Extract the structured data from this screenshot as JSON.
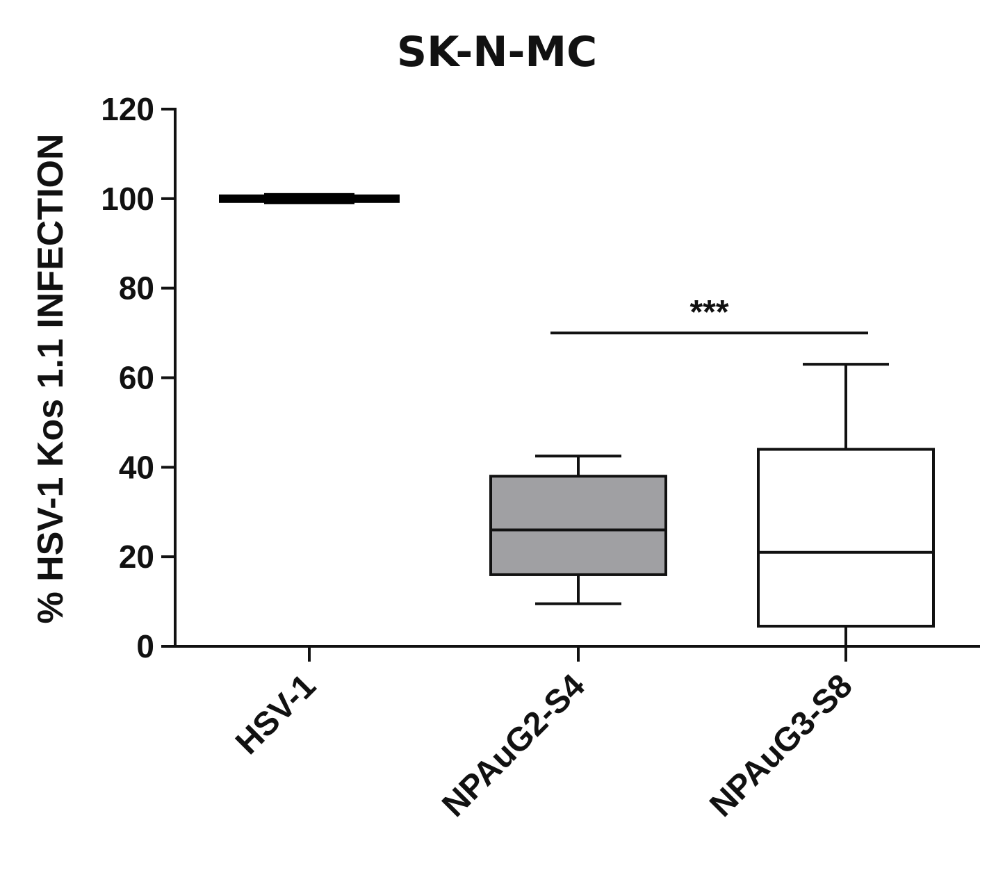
{
  "chart_data": {
    "type": "box",
    "title": "SK-N-MC",
    "xlabel": "",
    "ylabel": "% HSV-1 Kos 1.1 INFECTION",
    "ylim": [
      0,
      120
    ],
    "yticks": [
      "0",
      "20",
      "40",
      "60",
      "80",
      "100",
      "120"
    ],
    "ytick_values": [
      0,
      20,
      40,
      60,
      80,
      100,
      120
    ],
    "grid": false,
    "legend": "none",
    "categories": [
      "HSV-1",
      "NPAuG2-S4",
      "NPAuG3-S8"
    ],
    "boxes": [
      {
        "category": "HSV-1",
        "min": 100,
        "q1": 100,
        "median": 100,
        "q3": 100,
        "max": 100,
        "fill": "#000000"
      },
      {
        "category": "NPAuG2-S4",
        "min": 9.5,
        "q1": 16,
        "median": 26,
        "q3": 38,
        "max": 42.5,
        "fill": "#a0a0a3"
      },
      {
        "category": "NPAuG3-S8",
        "min": 0,
        "q1": 4.5,
        "median": 21,
        "q3": 44,
        "max": 63,
        "fill": "#ffffff"
      }
    ],
    "significance": {
      "label": "***",
      "from": "NPAuG2-S4",
      "to": "NPAuG3-S8",
      "y": 70
    }
  }
}
